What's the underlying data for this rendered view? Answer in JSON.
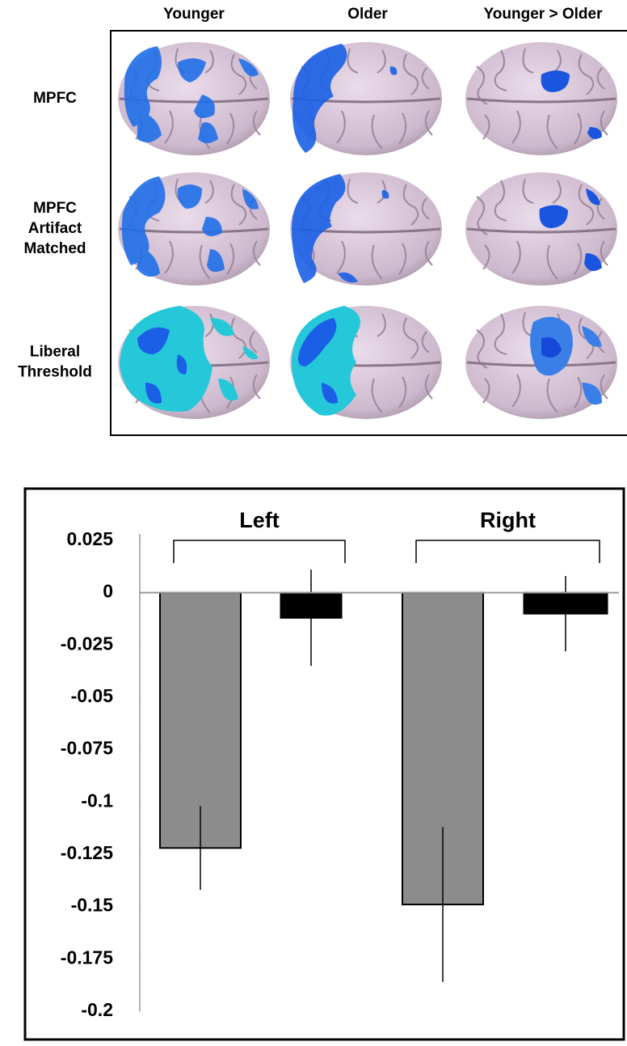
{
  "panel": {
    "column_labels": [
      "Younger",
      "Older",
      "Younger > Older"
    ],
    "row_labels": [
      [
        "MPFC"
      ],
      [
        "MPFC",
        "Artifact",
        "Matched"
      ],
      [
        "Liberal",
        "Threshold"
      ]
    ]
  },
  "chart_data": {
    "type": "bar",
    "groups": [
      "Left",
      "Right"
    ],
    "values": [
      -0.122,
      -0.012,
      -0.149,
      -0.01
    ],
    "errors": [
      0.02,
      0.023,
      0.037,
      0.018
    ],
    "colors": [
      "#8c8c8c",
      "#000000",
      "#8c8c8c",
      "#000000"
    ],
    "ylim": [
      -0.2,
      0.025
    ],
    "yticks": [
      0.025,
      0,
      -0.025,
      -0.05,
      -0.075,
      -0.1,
      -0.125,
      -0.15,
      -0.175,
      -0.2
    ]
  }
}
